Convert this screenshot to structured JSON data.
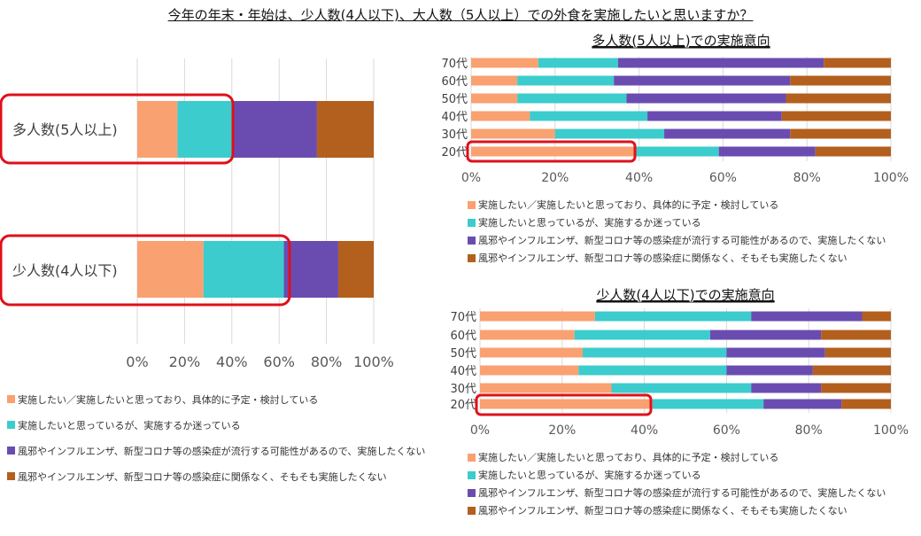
{
  "title": "今年の年末・年始は、少人数(4人以下)、大人数（5人以上）での外食を実施したいと思いますか？",
  "colors": [
    "#f9a170",
    "#3ccccd",
    "#6a4cb1",
    "#b35f1e"
  ],
  "legend": [
    "実施したい／実施したいと思っており、具体的に予定・検討している",
    "実施したいと思っているが、実施するか迷っている",
    "風邪やインフルエンザ、新型コロナ等の感染症が流行する可能性があるので、実施したくない",
    "風邪やインフルエンザ、新型コロナ等の感染症に関係なく、そもそも実施したくない"
  ],
  "chart_data": [
    {
      "type": "bar",
      "orientation": "horizontal",
      "stacked": true,
      "title": "",
      "categories": [
        "多人数(5人以上)",
        "少人数(4人以下)"
      ],
      "series": [
        {
          "name": "実施したい／実施したいと思っており、具体的に予定・検討している",
          "values": [
            17,
            28
          ]
        },
        {
          "name": "実施したいと思っているが、実施するか迷っている",
          "values": [
            23,
            34
          ]
        },
        {
          "name": "風邪やインフルエンザ、新型コロナ等の感染症が流行する可能性があるので、実施したくない",
          "values": [
            36,
            23
          ]
        },
        {
          "name": "風邪やインフルエンザ、新型コロナ等の感染症に関係なく、そもそも実施したくない",
          "values": [
            24,
            15
          ]
        }
      ],
      "xticks": [
        "0%",
        "20%",
        "40%",
        "60%",
        "80%",
        "100%"
      ],
      "xlim": [
        0,
        100
      ],
      "highlight": [
        "多人数(5人以上)",
        "少人数(4人以下)"
      ],
      "legend_position": "bottom"
    },
    {
      "type": "bar",
      "orientation": "horizontal",
      "stacked": true,
      "title": "多人数(5人以上)での実施意向",
      "categories": [
        "70代",
        "60代",
        "50代",
        "40代",
        "30代",
        "20代"
      ],
      "series": [
        {
          "name": "実施したい／実施したいと思っており、具体的に予定・検討している",
          "values": [
            16,
            11,
            11,
            14,
            20,
            39
          ]
        },
        {
          "name": "実施したいと思っているが、実施するか迷っている",
          "values": [
            19,
            23,
            26,
            28,
            26,
            20
          ]
        },
        {
          "name": "風邪やインフルエンザ、新型コロナ等の感染症が流行する可能性があるので、実施したくない",
          "values": [
            49,
            42,
            38,
            32,
            30,
            23
          ]
        },
        {
          "name": "風邪やインフルエンザ、新型コロナ等の感染症に関係なく、そもそも実施したくない",
          "values": [
            16,
            24,
            25,
            26,
            24,
            18
          ]
        }
      ],
      "xticks": [
        "0%",
        "20%",
        "40%",
        "60%",
        "80%",
        "100%"
      ],
      "xlim": [
        0,
        100
      ],
      "highlight": "20代",
      "legend_position": "bottom"
    },
    {
      "type": "bar",
      "orientation": "horizontal",
      "stacked": true,
      "title": "少人数(4人以下)での実施意向",
      "categories": [
        "70代",
        "60代",
        "50代",
        "40代",
        "30代",
        "20代"
      ],
      "series": [
        {
          "name": "実施したい／実施したいと思っており、具体的に予定・検討している",
          "values": [
            28,
            23,
            25,
            24,
            32,
            42
          ]
        },
        {
          "name": "実施したいと思っているが、実施するか迷っている",
          "values": [
            38,
            33,
            35,
            36,
            34,
            27
          ]
        },
        {
          "name": "風邪やインフルエンザ、新型コロナ等の感染症が流行する可能性があるので、実施したくない",
          "values": [
            27,
            27,
            24,
            21,
            17,
            19
          ]
        },
        {
          "name": "風邪やインフルエンザ、新型コロナ等の感染症に関係なく、そもそも実施したくない",
          "values": [
            7,
            17,
            16,
            19,
            17,
            12
          ]
        }
      ],
      "xticks": [
        "0%",
        "20%",
        "40%",
        "60%",
        "80%",
        "100%"
      ],
      "xlim": [
        0,
        100
      ],
      "highlight": "20代",
      "legend_position": "bottom"
    }
  ]
}
